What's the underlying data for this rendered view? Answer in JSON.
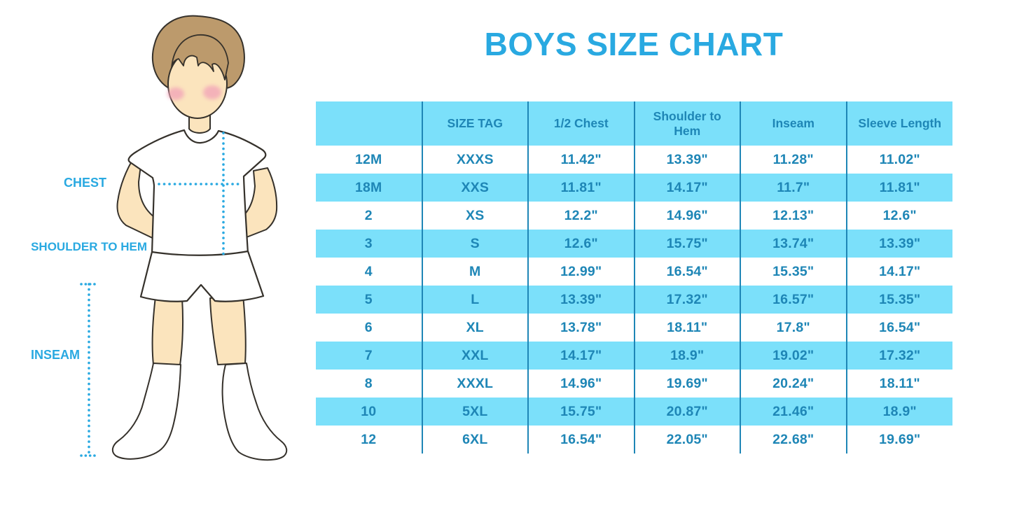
{
  "title": "BOYS SIZE CHART",
  "figure": {
    "chest_label": "CHEST",
    "shoulder_to_hem_label": "SHOULDER TO HEM",
    "inseam_label": "INSEAM"
  },
  "colors": {
    "accent": "#29A9E1",
    "table_stripe": "#7BE0FA",
    "table_text": "#1E86B6"
  },
  "chart_data": {
    "type": "table",
    "title": "BOYS SIZE CHART",
    "columns": [
      "",
      "SIZE TAG",
      "1/2 Chest",
      "Shoulder to Hem",
      "Inseam",
      "Sleeve Length"
    ],
    "rows": [
      [
        "12M",
        "XXXS",
        "11.42\"",
        "13.39\"",
        "11.28\"",
        "11.02\""
      ],
      [
        "18M",
        "XXS",
        "11.81\"",
        "14.17\"",
        "11.7\"",
        "11.81\""
      ],
      [
        "2",
        "XS",
        "12.2\"",
        "14.96\"",
        "12.13\"",
        "12.6\""
      ],
      [
        "3",
        "S",
        "12.6\"",
        "15.75\"",
        "13.74\"",
        "13.39\""
      ],
      [
        "4",
        "M",
        "12.99\"",
        "16.54\"",
        "15.35\"",
        "14.17\""
      ],
      [
        "5",
        "L",
        "13.39\"",
        "17.32\"",
        "16.57\"",
        "15.35\""
      ],
      [
        "6",
        "XL",
        "13.78\"",
        "18.11\"",
        "17.8\"",
        "16.54\""
      ],
      [
        "7",
        "XXL",
        "14.17\"",
        "18.9\"",
        "19.02\"",
        "17.32\""
      ],
      [
        "8",
        "XXXL",
        "14.96\"",
        "19.69\"",
        "20.24\"",
        "18.11\""
      ],
      [
        "10",
        "5XL",
        "15.75\"",
        "20.87\"",
        "21.46\"",
        "18.9\""
      ],
      [
        "12",
        "6XL",
        "16.54\"",
        "22.05\"",
        "22.68\"",
        "19.69\""
      ]
    ],
    "legend_position": "none",
    "grid": false
  }
}
